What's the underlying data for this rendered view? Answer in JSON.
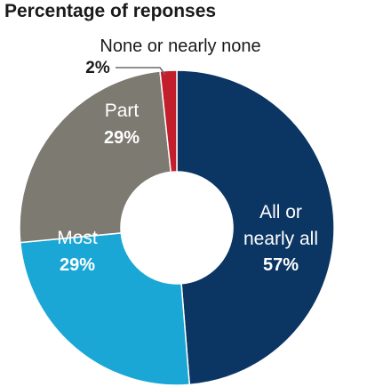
{
  "chart_data": {
    "type": "pie",
    "title": "Percentage of reponses",
    "categories": [
      "All or nearly all",
      "Most",
      "Part",
      "None or nearly none"
    ],
    "values": [
      57,
      29,
      29,
      2
    ],
    "value_labels": [
      "57%",
      "29%",
      "29%",
      "2%"
    ],
    "colors": [
      "#0b3563",
      "#1aa7d6",
      "#7d7a71",
      "#c21e2c"
    ],
    "label_colors": [
      "#ffffff",
      "#ffffff",
      "#ffffff",
      "#1a1a1a"
    ],
    "donut": true,
    "legend": "none"
  }
}
